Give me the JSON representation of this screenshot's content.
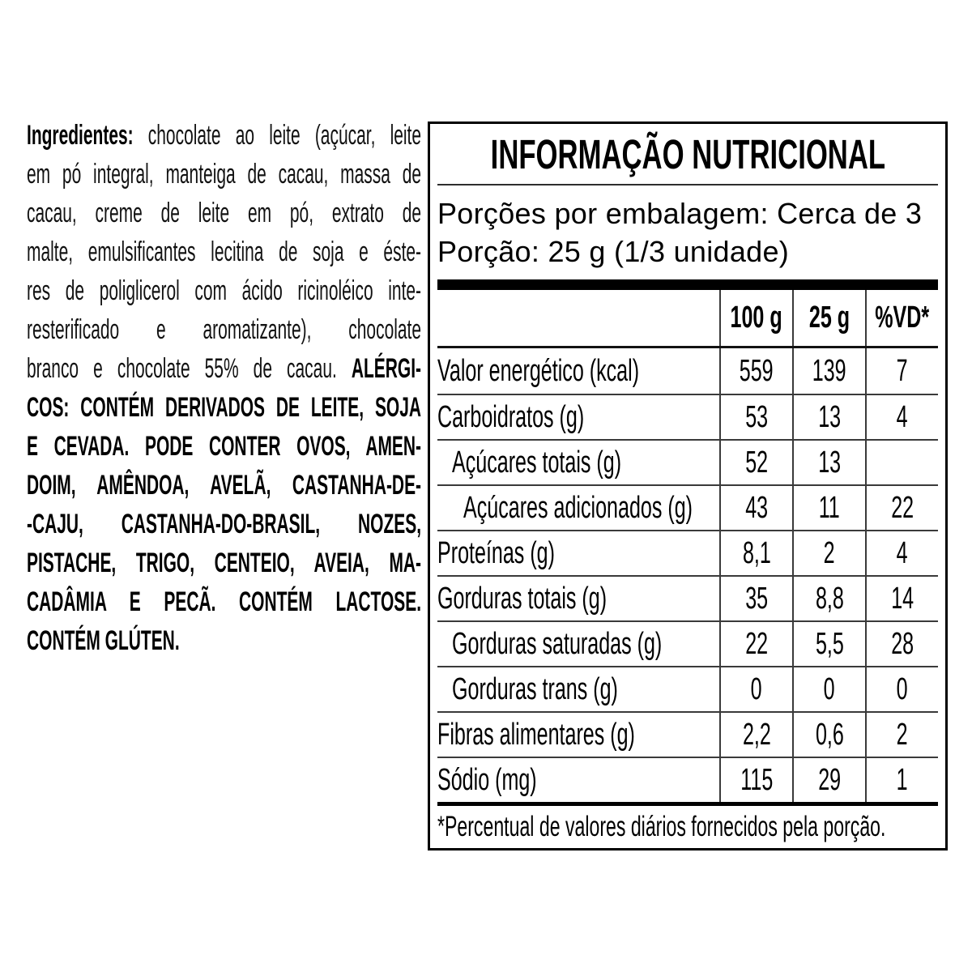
{
  "colors": {
    "text": "#000000",
    "background": "#ffffff",
    "grid_line": "#3a3a3a"
  },
  "ingredients": {
    "lines": [
      {
        "segments": [
          {
            "t": "Ingredientes:",
            "b": true
          },
          {
            "t": " chocolate ao leite (açúcar, leite",
            "b": false
          }
        ]
      },
      {
        "segments": [
          {
            "t": "em pó integral, manteiga de cacau, massa de",
            "b": false
          }
        ]
      },
      {
        "segments": [
          {
            "t": "cacau, creme de leite em pó, extrato de",
            "b": false
          }
        ]
      },
      {
        "segments": [
          {
            "t": "malte, emulsificantes lecitina de soja e éste-",
            "b": false
          }
        ]
      },
      {
        "segments": [
          {
            "t": "res de poliglicerol com ácido ricinoléico inte-",
            "b": false
          }
        ]
      },
      {
        "segments": [
          {
            "t": "resterificado e aromatizante), chocolate",
            "b": false
          }
        ]
      },
      {
        "segments": [
          {
            "t": "branco e chocolate 55% de cacau. ",
            "b": false
          },
          {
            "t": "ALÉRGI-",
            "b": true
          }
        ]
      },
      {
        "segments": [
          {
            "t": "COS: CONTÉM DERIVADOS DE LEITE, SOJA",
            "b": true
          }
        ]
      },
      {
        "segments": [
          {
            "t": "E CEVADA. PODE CONTER OVOS, AMEN-",
            "b": true
          }
        ]
      },
      {
        "segments": [
          {
            "t": "DOIM, AMÊNDOA, AVELÃ, CASTANHA-DE-",
            "b": true
          }
        ]
      },
      {
        "segments": [
          {
            "t": "-CAJU, CASTANHA-DO-BRASIL, NOZES,",
            "b": true
          }
        ]
      },
      {
        "segments": [
          {
            "t": "PISTACHE, TRIGO, CENTEIO, AVEIA, MA-",
            "b": true
          }
        ]
      },
      {
        "segments": [
          {
            "t": "CADÂMIA E PECÃ. CONTÉM LACTOSE.",
            "b": true
          }
        ]
      },
      {
        "segments": [
          {
            "t": "CONTÉM GLÚTEN.",
            "b": true
          }
        ]
      }
    ]
  },
  "nutrition_table": {
    "title": "INFORMAÇÃO NUTRICIONAL",
    "servings_line": "Porções por embalagem: Cerca de 3",
    "portion_line": "Porção: 25 g (1/3 unidade)",
    "columns": [
      "100 g",
      "25 g",
      "%VD*"
    ],
    "rows": [
      {
        "label": "Valor energético (kcal)",
        "indent": 0,
        "per100": "559",
        "per25": "139",
        "vd": "7"
      },
      {
        "label": "Carboidratos (g)",
        "indent": 0,
        "per100": "53",
        "per25": "13",
        "vd": "4"
      },
      {
        "label": "Açúcares totais (g)",
        "indent": 1,
        "per100": "52",
        "per25": "13",
        "vd": ""
      },
      {
        "label": "Açúcares adicionados (g)",
        "indent": 2,
        "per100": "43",
        "per25": "11",
        "vd": "22"
      },
      {
        "label": "Proteínas (g)",
        "indent": 0,
        "per100": "8,1",
        "per25": "2",
        "vd": "4"
      },
      {
        "label": "Gorduras totais (g)",
        "indent": 0,
        "per100": "35",
        "per25": "8,8",
        "vd": "14"
      },
      {
        "label": "Gorduras saturadas (g)",
        "indent": 1,
        "per100": "22",
        "per25": "5,5",
        "vd": "28"
      },
      {
        "label": "Gorduras trans (g)",
        "indent": 1,
        "per100": "0",
        "per25": "0",
        "vd": "0"
      },
      {
        "label": "Fibras alimentares (g)",
        "indent": 0,
        "per100": "2,2",
        "per25": "0,6",
        "vd": "2"
      },
      {
        "label": "Sódio (mg)",
        "indent": 0,
        "per100": "115",
        "per25": "29",
        "vd": "1"
      }
    ],
    "footnote": "*Percentual de valores diários fornecidos pela porção."
  }
}
